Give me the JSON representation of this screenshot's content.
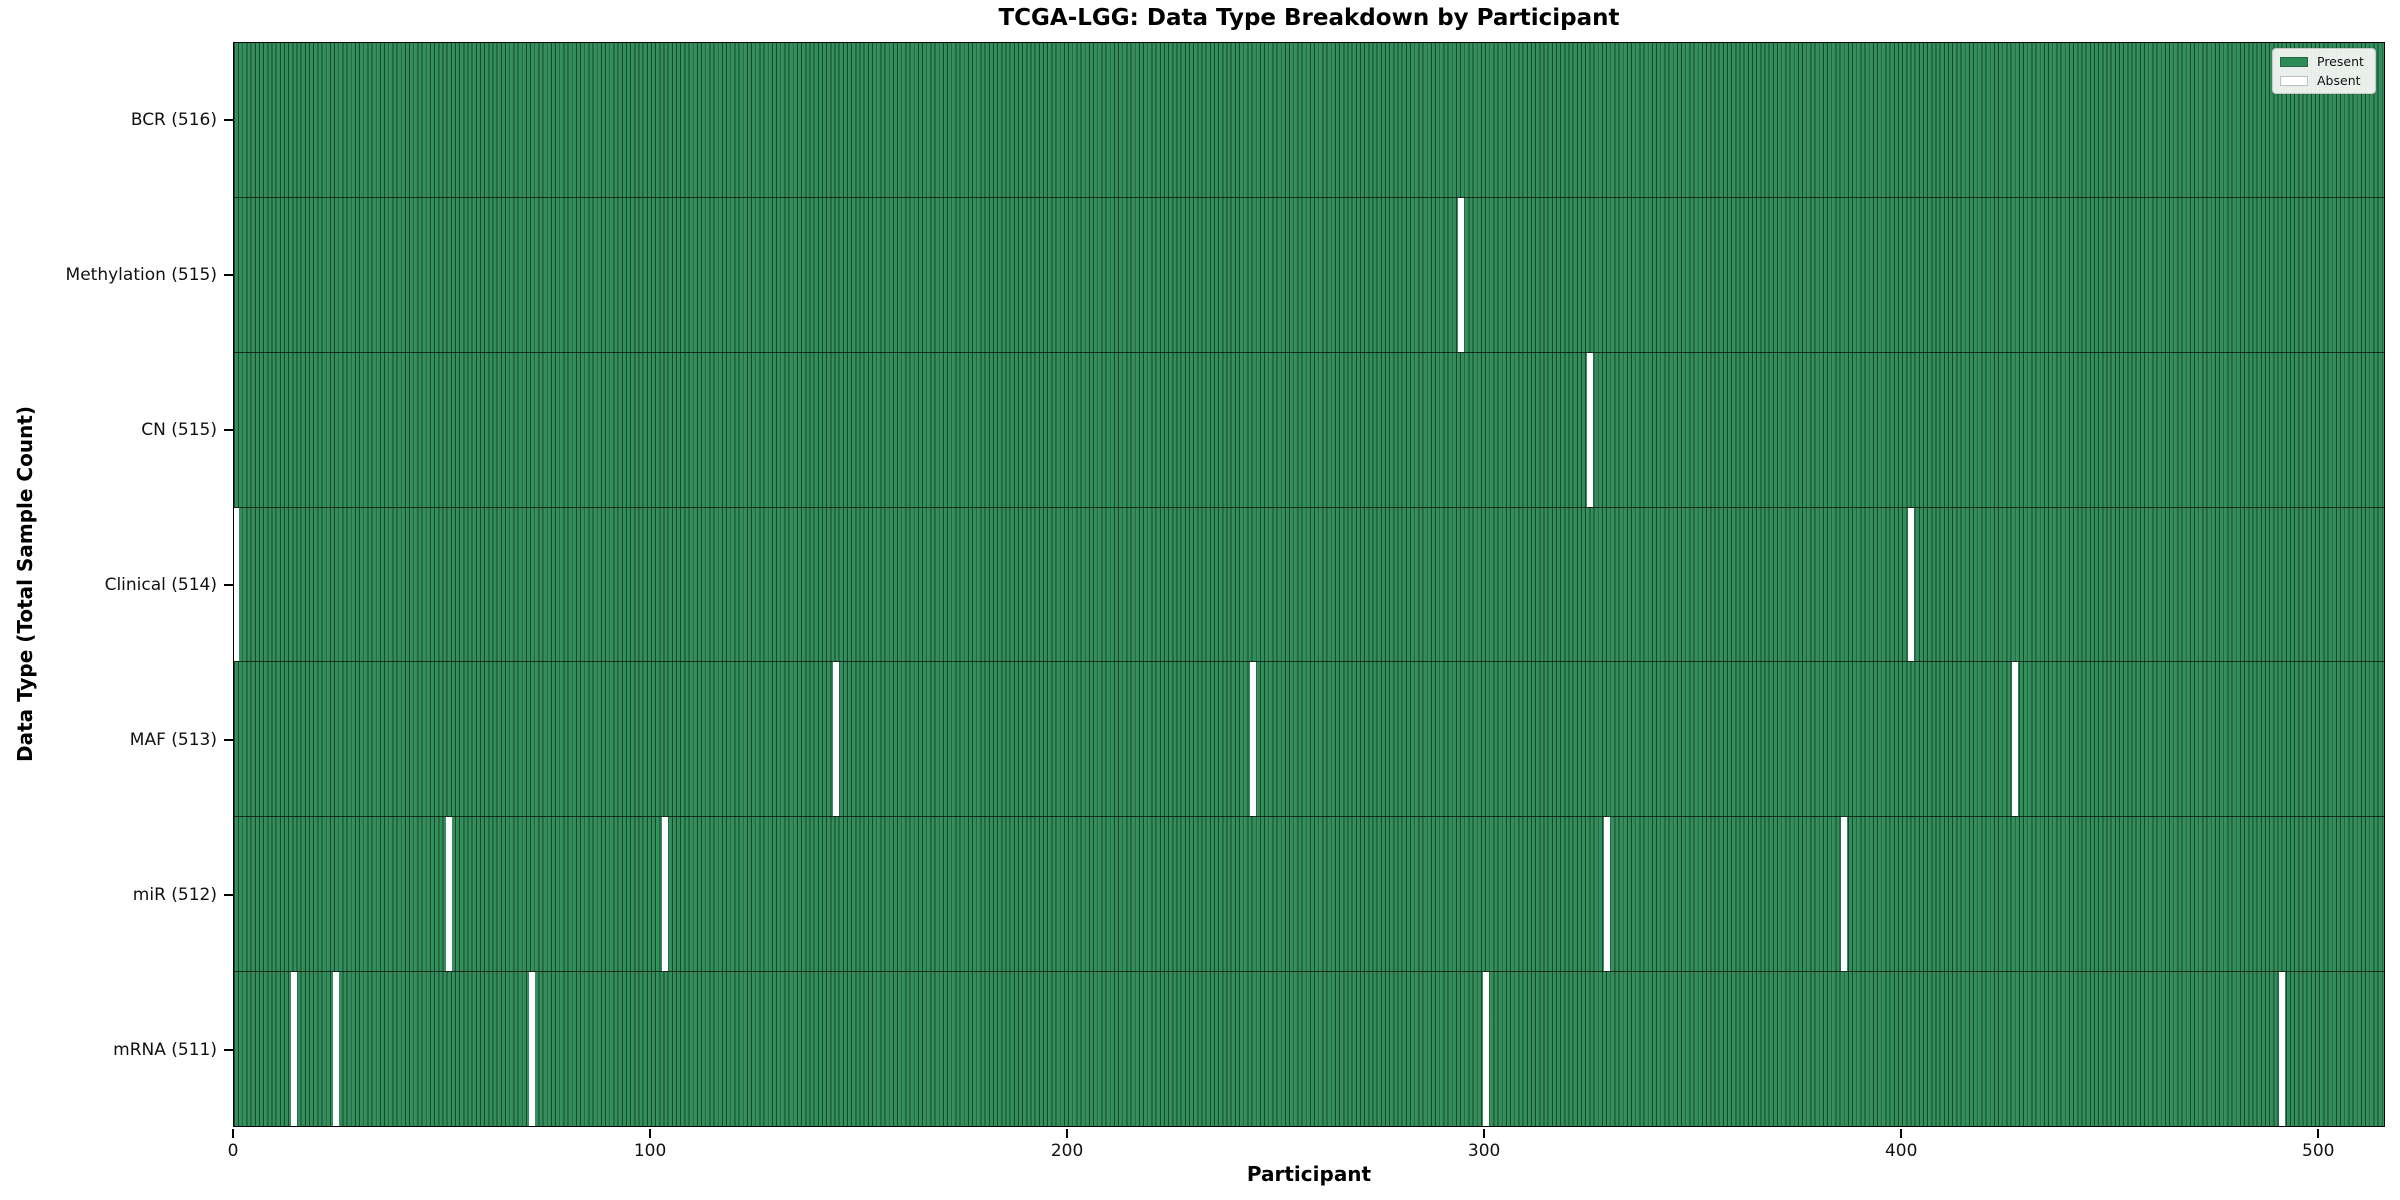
{
  "figure": {
    "title": "TCGA-LGG: Data Type Breakdown by Participant",
    "xlabel": "Participant",
    "ylabel": "Data Type (Total Sample Count)"
  },
  "legend": {
    "items": [
      {
        "label": "Present",
        "color": "#2e8b57"
      },
      {
        "label": "Absent",
        "color": "#ffffff"
      }
    ]
  },
  "chart_data": {
    "type": "heatmap",
    "title": "TCGA-LGG: Data Type Breakdown by Participant",
    "xlabel": "Participant",
    "ylabel": "Data Type (Total Sample Count)",
    "legend_entries": [
      "Present",
      "Absent"
    ],
    "legend_position": "upper right",
    "grid": false,
    "xlim": [
      0,
      516
    ],
    "x_ticks": [
      0,
      100,
      200,
      300,
      400,
      500
    ],
    "n_participants": 516,
    "present_color": "#2e8b57",
    "absent_color": "#ffffff",
    "bar_edge_color": "#0a1a10",
    "rows": [
      {
        "id": "bcr",
        "label": "BCR (516)",
        "data_type": "BCR",
        "present_count": 516,
        "absent_participants": []
      },
      {
        "id": "methylation",
        "label": "Methylation (515)",
        "data_type": "Methylation",
        "present_count": 515,
        "absent_participants": [
          294
        ]
      },
      {
        "id": "cn",
        "label": "CN (515)",
        "data_type": "CN",
        "present_count": 515,
        "absent_participants": [
          325
        ]
      },
      {
        "id": "clinical",
        "label": "Clinical (514)",
        "data_type": "Clinical",
        "present_count": 514,
        "absent_participants": [
          0,
          402
        ]
      },
      {
        "id": "maf",
        "label": "MAF (513)",
        "data_type": "MAF",
        "present_count": 513,
        "absent_participants": [
          144,
          244,
          427
        ]
      },
      {
        "id": "mir",
        "label": "miR (512)",
        "data_type": "miR",
        "present_count": 512,
        "absent_participants": [
          51,
          103,
          329,
          386
        ]
      },
      {
        "id": "mrna",
        "label": "mRNA (511)",
        "data_type": "mRNA",
        "present_count": 511,
        "absent_participants": [
          14,
          24,
          71,
          300,
          491
        ]
      }
    ]
  }
}
